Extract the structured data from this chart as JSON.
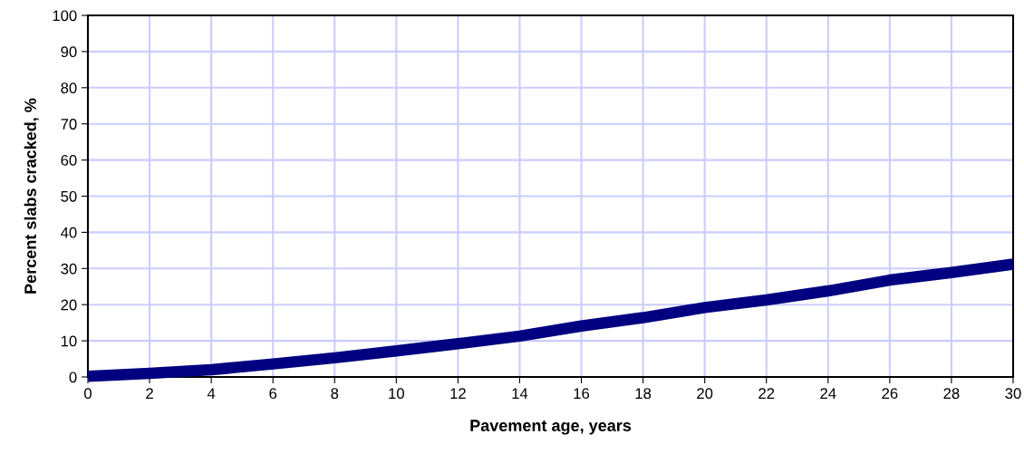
{
  "chart_data": {
    "type": "line",
    "xlabel": "Pavement age, years",
    "ylabel": "Percent slabs cracked, %",
    "x": [
      0,
      2,
      4,
      6,
      8,
      10,
      12,
      14,
      16,
      18,
      20,
      22,
      24,
      26,
      28,
      30
    ],
    "series": [
      {
        "color": "#000080",
        "values": [
          0.2,
          1.0,
          2.0,
          3.6,
          5.3,
          7.2,
          9.2,
          11.3,
          14.1,
          16.4,
          19.2,
          21.3,
          23.8,
          26.8,
          28.9,
          31.2
        ]
      }
    ],
    "xlim": [
      0,
      30
    ],
    "xticks": [
      0,
      2,
      4,
      6,
      8,
      10,
      12,
      14,
      16,
      18,
      20,
      22,
      24,
      26,
      28,
      30
    ],
    "ylim": [
      0,
      100
    ],
    "yticks": [
      0,
      10,
      20,
      30,
      40,
      50,
      60,
      70,
      80,
      90,
      100
    ],
    "grid": true,
    "legend": false,
    "marker": "none",
    "line_style": "solid"
  }
}
